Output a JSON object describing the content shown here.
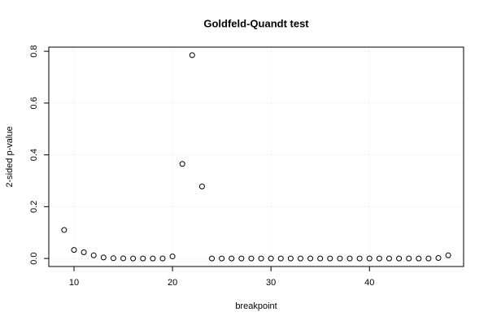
{
  "chart_data": {
    "type": "scatter",
    "title": "Goldfeld-Quandt test",
    "x_label": "breakpoint",
    "y_label": "2-sided p-value",
    "x": [
      9,
      10,
      11,
      12,
      13,
      14,
      15,
      16,
      17,
      18,
      19,
      20,
      21,
      22,
      23,
      24,
      25,
      26,
      27,
      28,
      29,
      30,
      31,
      32,
      33,
      34,
      35,
      36,
      37,
      38,
      39,
      40,
      41,
      42,
      43,
      44,
      45,
      46,
      47,
      48
    ],
    "values": [
      0.11,
      0.033,
      0.024,
      0.012,
      0.004,
      0.001,
      0.0005,
      0,
      0,
      0,
      0,
      0.008,
      0.365,
      0.785,
      0.278,
      0,
      0,
      0,
      0,
      0,
      0,
      0,
      0,
      0,
      0,
      0,
      0,
      0,
      0,
      0,
      0,
      0,
      0,
      0,
      0,
      0,
      0,
      0,
      0.002,
      0.012
    ],
    "color": "#000000",
    "xlim": [
      7.44,
      49.56
    ],
    "xticks": [
      10,
      20,
      30,
      40
    ],
    "ylim": [
      -0.031,
      0.816
    ],
    "yticks": [
      {
        "value": 0,
        "label": "0.0"
      },
      {
        "value": 0.2,
        "label": "0.2"
      },
      {
        "value": 0.4,
        "label": "0.4"
      },
      {
        "value": 0.6,
        "label": "0.6"
      },
      {
        "value": 0.8,
        "label": "0.8"
      }
    ],
    "grid": true
  }
}
